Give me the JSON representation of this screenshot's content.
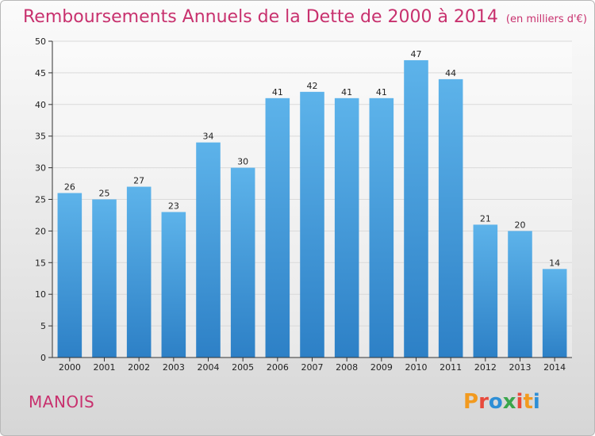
{
  "header": {
    "title": "Remboursements Annuels de la Dette de 2000 à 2014",
    "unit_note": "(en milliers d'€)"
  },
  "footer": {
    "place": "MANOIS",
    "brand": "Proxiti"
  },
  "colors": {
    "title": "#c8316e",
    "bar_light": "#5db3ea",
    "bar_dark": "#2d80c6",
    "axis": "#333333",
    "grid": "#dadada"
  },
  "chart_data": {
    "type": "bar",
    "title": "Remboursements Annuels de la Dette de 2000 à 2014",
    "subtitle": "(en milliers d'€)",
    "categories": [
      "2000",
      "2001",
      "2002",
      "2003",
      "2004",
      "2005",
      "2006",
      "2007",
      "2008",
      "2009",
      "2010",
      "2011",
      "2012",
      "2013",
      "2014"
    ],
    "values": [
      26,
      25,
      27,
      23,
      34,
      30,
      41,
      42,
      41,
      41,
      47,
      44,
      21,
      20,
      14
    ],
    "ylim": [
      0,
      50
    ],
    "yticks": [
      0,
      5,
      10,
      15,
      20,
      25,
      30,
      35,
      40,
      45,
      50
    ],
    "grid": true,
    "data_labels": true
  }
}
